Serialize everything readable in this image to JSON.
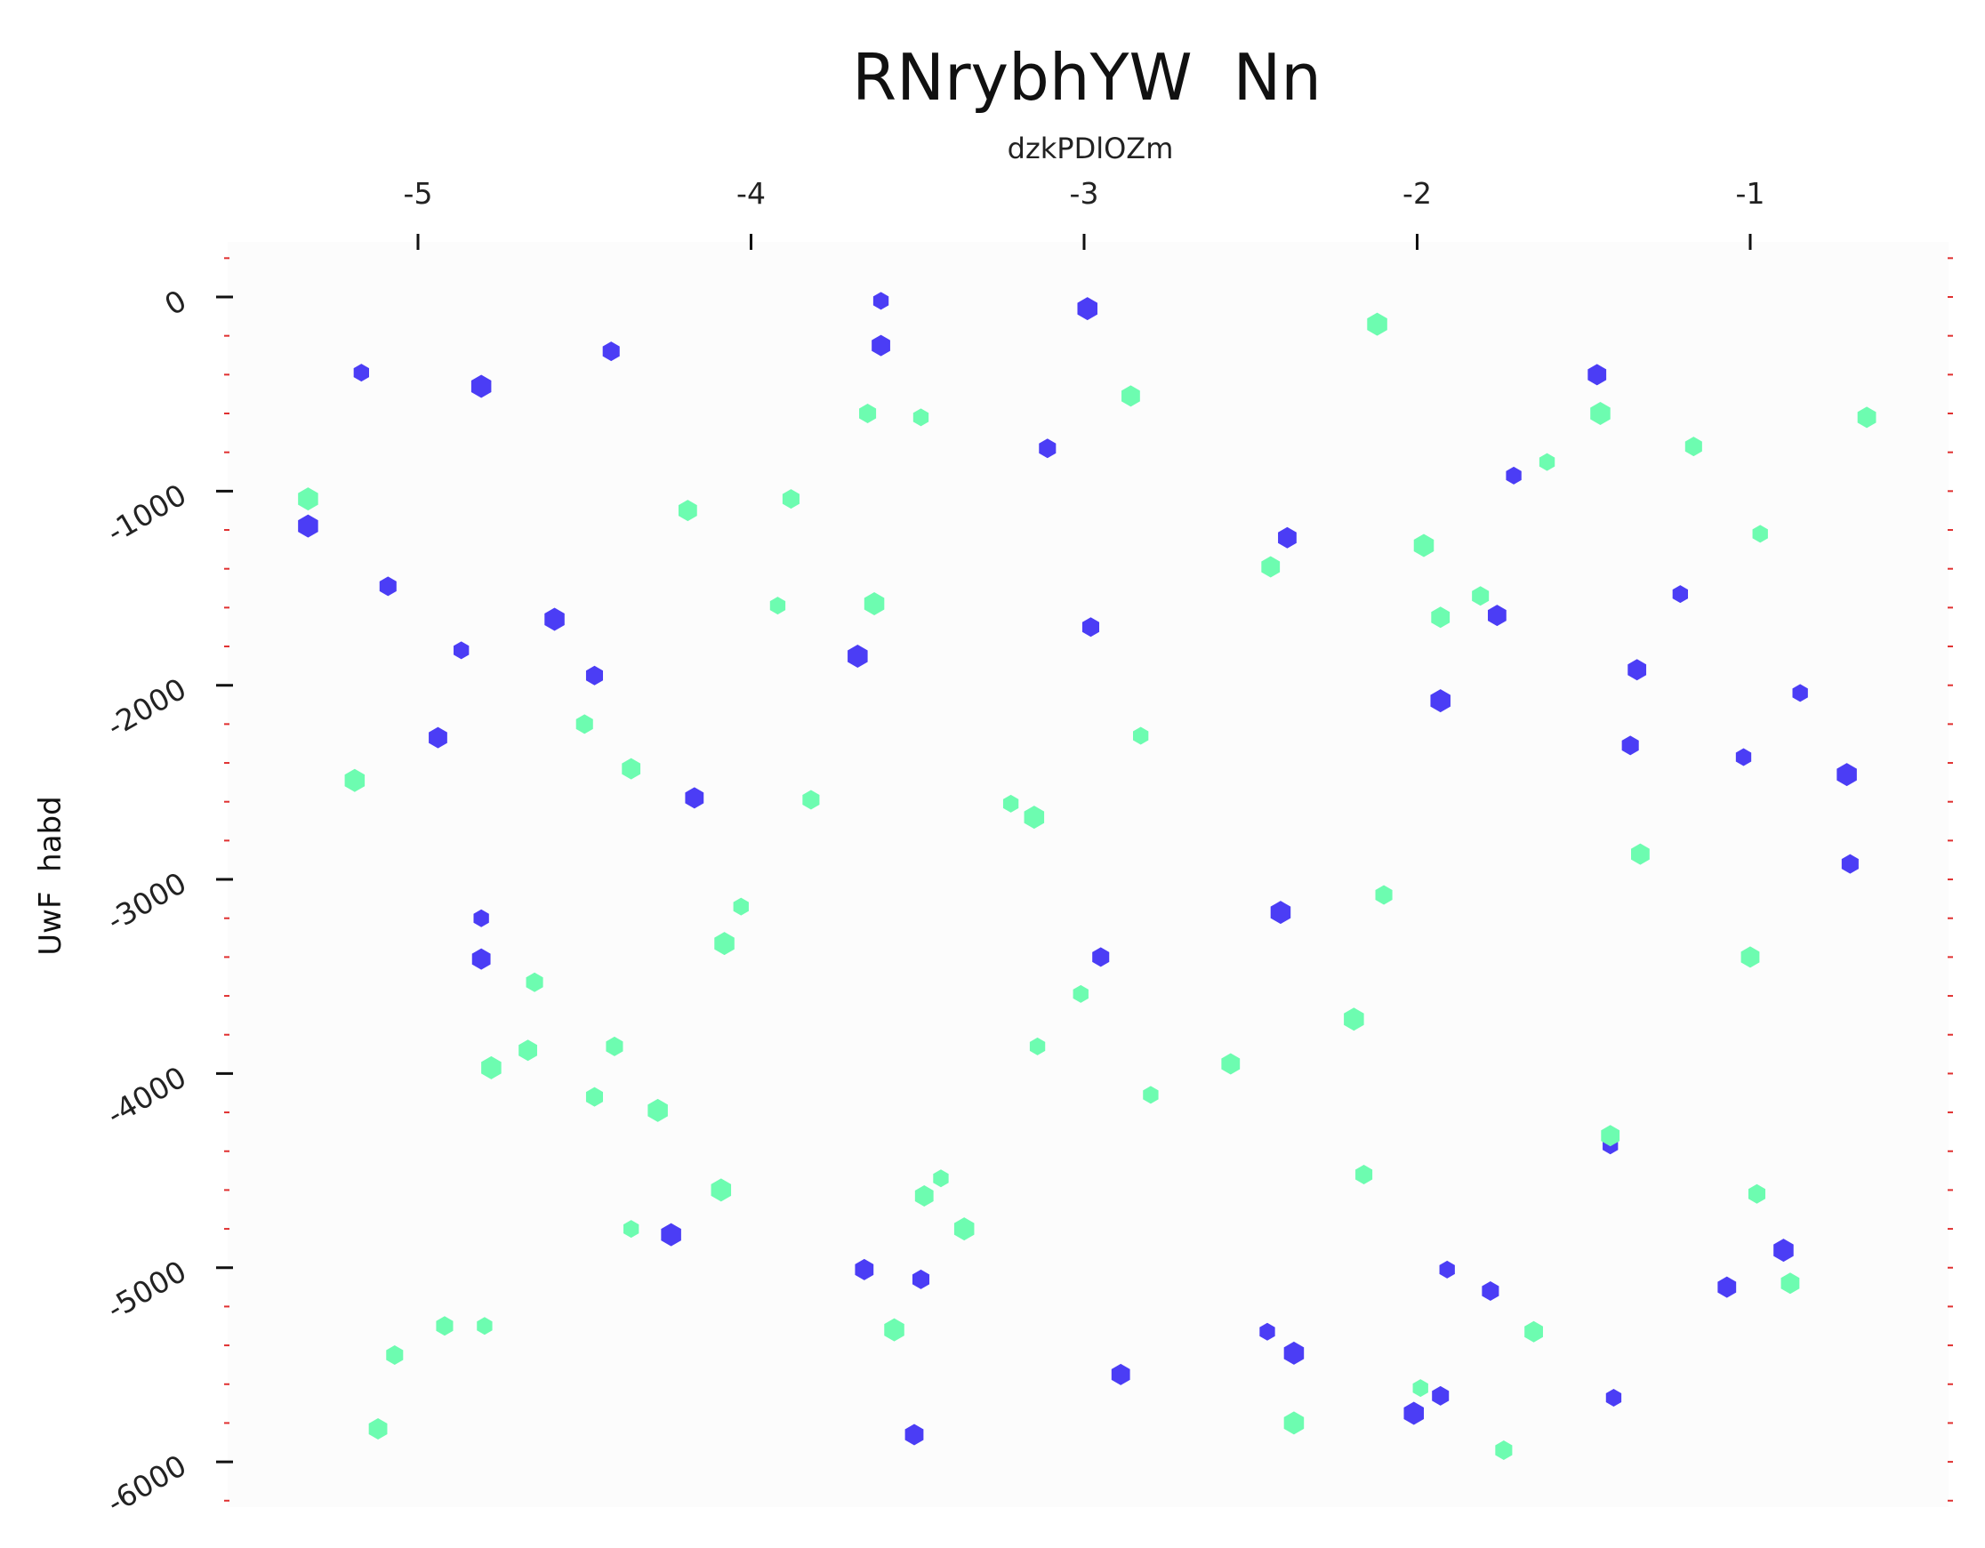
{
  "chart_data": {
    "type": "scatter",
    "title": "RNrybhYW  Nn",
    "xlabel": "dzkPDlOZm",
    "ylabel": "UwF  habd",
    "xlim": [
      -5.57,
      -0.58
    ],
    "ylim": [
      -6250,
      300
    ],
    "x_ticks": [
      -5,
      -4,
      -3,
      -2,
      -1
    ],
    "x_tick_labels": [
      "-5",
      "-4",
      "-3",
      "-2",
      "-1"
    ],
    "y_ticks": [
      0,
      -1000,
      -2000,
      -3000,
      -4000,
      -5000,
      -6000
    ],
    "y_tick_labels": [
      "0",
      "-1000",
      "-2000",
      "-3000",
      "-4000",
      "-5000",
      "-6000"
    ],
    "grid": false,
    "colors": {
      "series_a": "#4b3df5",
      "series_b": "#6dfcb0",
      "minor_tick": "#e03030",
      "plot_bg": "#fcfcfc"
    },
    "series": [
      {
        "color": "#4b3df5",
        "points": [
          [
            -3.61,
            -20
          ],
          [
            -2.99,
            -60
          ],
          [
            -3.61,
            -250
          ],
          [
            -4.42,
            -280
          ],
          [
            -5.17,
            -390
          ],
          [
            -4.81,
            -460
          ],
          [
            -1.46,
            -400
          ],
          [
            -3.11,
            -780
          ],
          [
            -1.71,
            -920
          ],
          [
            -5.33,
            -1180
          ],
          [
            -2.39,
            -1240
          ],
          [
            -5.09,
            -1490
          ],
          [
            -1.21,
            -1530
          ],
          [
            -4.59,
            -1660
          ],
          [
            -1.76,
            -1640
          ],
          [
            -2.98,
            -1700
          ],
          [
            -4.87,
            -1820
          ],
          [
            -3.68,
            -1850
          ],
          [
            -1.34,
            -1920
          ],
          [
            -4.47,
            -1950
          ],
          [
            -0.85,
            -2040
          ],
          [
            -1.93,
            -2080
          ],
          [
            -4.94,
            -2270
          ],
          [
            -1.36,
            -2310
          ],
          [
            -1.02,
            -2370
          ],
          [
            -0.71,
            -2460
          ],
          [
            -4.17,
            -2580
          ],
          [
            -0.7,
            -2920
          ],
          [
            -4.81,
            -3200
          ],
          [
            -2.41,
            -3170
          ],
          [
            -4.81,
            -3410
          ],
          [
            -2.95,
            -3400
          ],
          [
            -1.42,
            -4370
          ],
          [
            -4.24,
            -4830
          ],
          [
            -3.66,
            -5010
          ],
          [
            -3.49,
            -5060
          ],
          [
            -1.91,
            -5010
          ],
          [
            -0.9,
            -4910
          ],
          [
            -1.07,
            -5100
          ],
          [
            -1.78,
            -5120
          ],
          [
            -2.45,
            -5330
          ],
          [
            -2.37,
            -5440
          ],
          [
            -2.89,
            -5550
          ],
          [
            -1.93,
            -5660
          ],
          [
            -1.41,
            -5670
          ],
          [
            -2.01,
            -5750
          ],
          [
            -3.51,
            -5860
          ]
        ]
      },
      {
        "color": "#6dfcb0",
        "points": [
          [
            -2.12,
            -140
          ],
          [
            -2.86,
            -510
          ],
          [
            -3.65,
            -600
          ],
          [
            -3.49,
            -620
          ],
          [
            -1.45,
            -600
          ],
          [
            -0.65,
            -620
          ],
          [
            -1.17,
            -770
          ],
          [
            -1.61,
            -850
          ],
          [
            -5.33,
            -1040
          ],
          [
            -4.19,
            -1100
          ],
          [
            -3.88,
            -1040
          ],
          [
            -0.97,
            -1220
          ],
          [
            -1.98,
            -1280
          ],
          [
            -2.44,
            -1390
          ],
          [
            -1.81,
            -1540
          ],
          [
            -3.92,
            -1590
          ],
          [
            -3.63,
            -1580
          ],
          [
            -1.93,
            -1650
          ],
          [
            -4.5,
            -2200
          ],
          [
            -2.83,
            -2260
          ],
          [
            -5.19,
            -2490
          ],
          [
            -4.36,
            -2430
          ],
          [
            -3.82,
            -2590
          ],
          [
            -3.22,
            -2610
          ],
          [
            -3.15,
            -2680
          ],
          [
            -1.33,
            -2870
          ],
          [
            -2.1,
            -3080
          ],
          [
            -4.03,
            -3140
          ],
          [
            -4.08,
            -3330
          ],
          [
            -1.0,
            -3400
          ],
          [
            -4.65,
            -3530
          ],
          [
            -3.01,
            -3590
          ],
          [
            -2.19,
            -3720
          ],
          [
            -4.67,
            -3880
          ],
          [
            -4.41,
            -3860
          ],
          [
            -3.14,
            -3860
          ],
          [
            -4.78,
            -3970
          ],
          [
            -2.56,
            -3950
          ],
          [
            -4.47,
            -4120
          ],
          [
            -2.8,
            -4110
          ],
          [
            -4.28,
            -4190
          ],
          [
            -1.42,
            -4320
          ],
          [
            -2.16,
            -4520
          ],
          [
            -3.43,
            -4540
          ],
          [
            -4.09,
            -4600
          ],
          [
            -3.48,
            -4630
          ],
          [
            -0.98,
            -4620
          ],
          [
            -4.36,
            -4800
          ],
          [
            -3.36,
            -4800
          ],
          [
            -0.88,
            -5080
          ],
          [
            -4.92,
            -5300
          ],
          [
            -4.8,
            -5300
          ],
          [
            -3.57,
            -5320
          ],
          [
            -1.65,
            -5330
          ],
          [
            -5.07,
            -5450
          ],
          [
            -1.99,
            -5620
          ],
          [
            -2.37,
            -5800
          ],
          [
            -5.12,
            -5830
          ],
          [
            -1.74,
            -5940
          ]
        ]
      }
    ]
  }
}
